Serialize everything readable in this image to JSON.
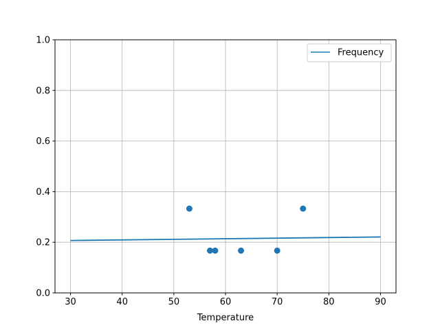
{
  "chart_data": {
    "type": "scatter",
    "title": "",
    "xlabel": "Temperature",
    "ylabel": "",
    "xlim": [
      27,
      93
    ],
    "ylim": [
      0,
      1
    ],
    "xticks": [
      30,
      40,
      50,
      60,
      70,
      80,
      90
    ],
    "yticks": [
      0.0,
      0.2,
      0.4,
      0.6,
      0.8,
      1.0
    ],
    "xtick_labels": [
      "30",
      "40",
      "50",
      "60",
      "70",
      "80",
      "90"
    ],
    "ytick_labels": [
      "0.0",
      "0.2",
      "0.4",
      "0.6",
      "0.8",
      "1.0"
    ],
    "grid": true,
    "legend": {
      "placement": "top-right",
      "entries": [
        "Frequency"
      ]
    },
    "color": "#1f77b4",
    "points": {
      "x": [
        53,
        57,
        58,
        63,
        70,
        75
      ],
      "y": [
        0.333,
        0.167,
        0.167,
        0.167,
        0.167,
        0.333
      ]
    },
    "series": [
      {
        "name": "Frequency",
        "type": "line",
        "x": [
          30,
          90
        ],
        "y": [
          0.207,
          0.221
        ]
      }
    ]
  }
}
